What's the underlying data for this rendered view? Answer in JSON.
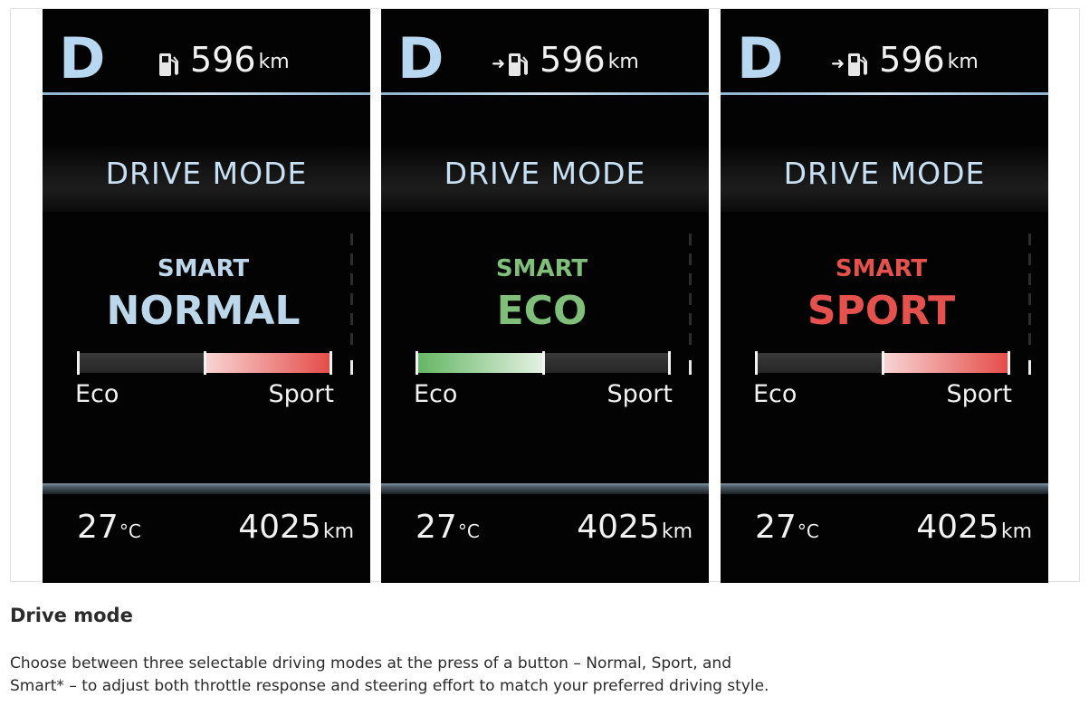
{
  "panels": [
    {
      "gear": "D",
      "range_value": "596",
      "range_unit": "km",
      "show_arrow": false,
      "title": "DRIVE MODE",
      "smart": "SMART",
      "mode": "NORMAL",
      "mode_color": "#bcd6ea",
      "bar_fill": "right",
      "fill_from": 0.5,
      "fill_to": 1.0,
      "fill_color": "#e2534f",
      "eco_label": "Eco",
      "sport_label": "Sport",
      "temp_value": "27",
      "temp_unit": "°C",
      "odo_value": "4025",
      "odo_unit": "km"
    },
    {
      "gear": "D",
      "range_value": "596",
      "range_unit": "km",
      "show_arrow": true,
      "title": "DRIVE MODE",
      "smart": "SMART",
      "mode": "ECO",
      "mode_color": "#7fbf7a",
      "bar_fill": "left",
      "fill_from": 0.0,
      "fill_to": 0.5,
      "fill_color": "#6fbf6f",
      "eco_label": "Eco",
      "sport_label": "Sport",
      "temp_value": "27",
      "temp_unit": "°C",
      "odo_value": "4025",
      "odo_unit": "km"
    },
    {
      "gear": "D",
      "range_value": "596",
      "range_unit": "km",
      "show_arrow": true,
      "title": "DRIVE MODE",
      "smart": "SMART",
      "mode": "SPORT",
      "mode_color": "#e5524d",
      "bar_fill": "right",
      "fill_from": 0.5,
      "fill_to": 1.0,
      "fill_color": "#e2534f",
      "eco_label": "Eco",
      "sport_label": "Sport",
      "temp_value": "27",
      "temp_unit": "°C",
      "odo_value": "4025",
      "odo_unit": "km"
    }
  ],
  "icons": {
    "range": "fuel-pump-icon",
    "arrow": "right-arrow-icon"
  },
  "colors": {
    "gear": "#b8d8f1",
    "title": "#c8e0f3",
    "text": "#f1f1f1"
  },
  "heading": "Drive mode",
  "description": "Choose between three selectable driving modes at the press of a button – Normal, Sport, and Smart* – to adjust both throttle response and steering effort to match your preferred driving style."
}
